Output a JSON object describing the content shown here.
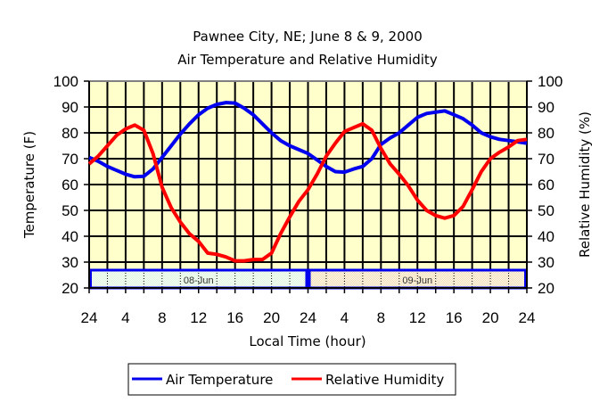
{
  "chart_data": {
    "type": "line",
    "title": "Pawnee City, NE; June 8 & 9, 2000",
    "subtitle": "Air Temperature and Relative Humidity",
    "xlabel": "Local Time (hour)",
    "ylabel": "Temperature (F)",
    "y2label": "Relative Humidity (%)",
    "xlim": [
      0,
      48
    ],
    "ylim": [
      20,
      100
    ],
    "y2lim": [
      20,
      100
    ],
    "yticks": [
      "20",
      "30",
      "40",
      "50",
      "60",
      "70",
      "80",
      "90",
      "100"
    ],
    "y2ticks": [
      "20",
      "30",
      "40",
      "50",
      "60",
      "70",
      "80",
      "90",
      "100"
    ],
    "xticks": [
      "24",
      "4",
      "8",
      "12",
      "16",
      "20",
      "24",
      "4",
      "8",
      "12",
      "16",
      "20",
      "24"
    ],
    "xtick_hours": [
      0,
      4,
      8,
      12,
      16,
      20,
      24,
      28,
      32,
      36,
      40,
      44,
      48
    ],
    "grid": true,
    "grid_x_step_hours": 2,
    "grid_y_step": 10,
    "date_bands": [
      {
        "label": "08-Jun",
        "start": 0,
        "end": 24,
        "color": "#d9f5d9"
      },
      {
        "label": "09-Jun",
        "start": 24,
        "end": 48,
        "color": "#f2d9a6"
      }
    ],
    "legend_position": "bottom-center",
    "x": [
      0,
      1,
      2,
      3,
      4,
      5,
      6,
      7,
      8,
      9,
      10,
      11,
      12,
      13,
      14,
      15,
      16,
      17,
      18,
      19,
      20,
      21,
      22,
      23,
      24,
      25,
      26,
      27,
      28,
      29,
      30,
      31,
      32,
      33,
      34,
      35,
      36,
      37,
      38,
      39,
      40,
      41,
      42,
      43,
      44,
      45,
      46,
      47,
      48
    ],
    "series": [
      {
        "name": "Air Temperature",
        "axis": "left",
        "color": "#0000ee",
        "values": [
          70.5,
          69,
          67,
          65.5,
          64,
          63,
          63.2,
          66,
          70.5,
          75,
          79.5,
          83.5,
          87,
          89.5,
          91,
          91.7,
          91.5,
          89.5,
          87,
          83.5,
          80,
          77,
          75,
          73.5,
          72,
          69.5,
          67,
          65,
          64.8,
          66,
          67,
          70,
          75.5,
          78,
          80,
          83,
          86,
          87.5,
          88,
          88.5,
          87,
          85.5,
          83,
          80,
          78.5,
          77.5,
          77,
          76.5,
          76
        ]
      },
      {
        "name": "Relative Humidity",
        "axis": "right",
        "color": "#ff0000",
        "values": [
          68,
          71,
          75,
          79,
          81.5,
          83,
          81,
          72,
          59,
          51,
          45.5,
          41,
          38,
          33.5,
          33,
          32,
          30.5,
          30.5,
          31,
          31,
          33.5,
          41,
          47.5,
          53.5,
          58,
          64,
          71,
          76,
          80.5,
          82,
          83.5,
          81,
          74,
          68,
          64,
          59.5,
          54,
          50,
          48,
          47,
          48,
          51.5,
          58,
          65,
          70,
          72.5,
          74.5,
          77,
          77.5
        ]
      }
    ]
  },
  "colors": {
    "plot_background": "#ffffcc",
    "gridline": "#000000",
    "band_border": "#0000ee"
  }
}
